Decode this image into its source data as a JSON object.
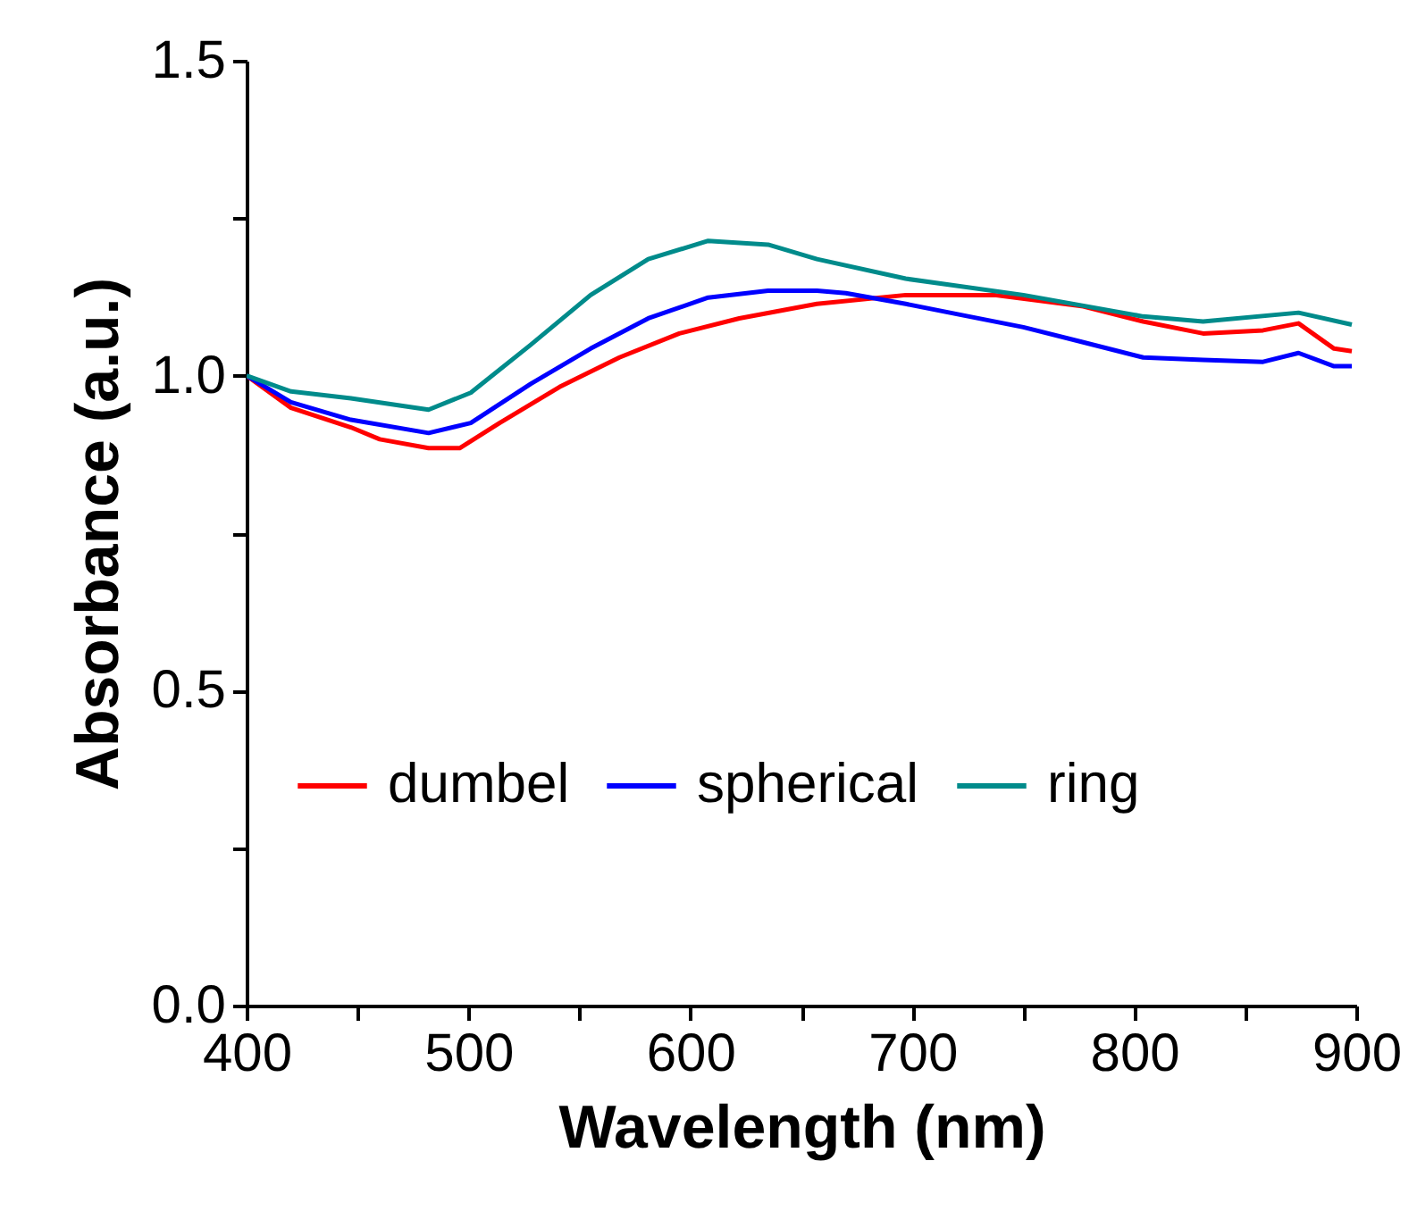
{
  "chart_data": {
    "type": "line",
    "xlabel": "Wavelength (nm)",
    "ylabel": "Absorbance (a.u.)",
    "xlim": [
      400,
      900
    ],
    "ylim": [
      0,
      1.5
    ],
    "xticks": [
      400,
      {
        "value": 450,
        "label": null
      },
      500,
      {
        "value": 550,
        "label": null
      },
      600,
      {
        "value": 650,
        "label": null
      },
      700,
      {
        "value": 750,
        "label": null
      },
      800,
      {
        "value": 850,
        "label": null
      },
      900
    ],
    "yticks": [
      {
        "value": 0,
        "label": "0.0"
      },
      {
        "value": 0.25,
        "label": null
      },
      0.5,
      {
        "value": 0.75,
        "label": null
      },
      {
        "value": 1,
        "label": "1.0"
      },
      {
        "value": 1.25,
        "label": null
      },
      1.5
    ],
    "grid": false,
    "legend": "center",
    "line_style": "solid",
    "marker": "none",
    "series": [
      {
        "name": "dumbel",
        "color": "#ff0000",
        "x": [
          400,
          420,
          447,
          460,
          482,
          496,
          514,
          541,
          568,
          595,
          622,
          657,
          697,
          737,
          777,
          804,
          831,
          858,
          874,
          890,
          898
        ],
        "values": [
          1.0,
          0.949,
          0.918,
          0.899,
          0.885,
          0.885,
          0.925,
          0.982,
          1.029,
          1.067,
          1.091,
          1.114,
          1.128,
          1.128,
          1.11,
          1.086,
          1.067,
          1.072,
          1.083,
          1.043,
          1.039
        ]
      },
      {
        "name": "spherical",
        "color": "#0000ff",
        "x": [
          400,
          420,
          447,
          482,
          501,
          528,
          555,
          581,
          608,
          635,
          657,
          670,
          697,
          724,
          750,
          777,
          804,
          831,
          858,
          874,
          890,
          898
        ],
        "values": [
          1.0,
          0.958,
          0.93,
          0.909,
          0.925,
          0.987,
          1.043,
          1.091,
          1.124,
          1.135,
          1.135,
          1.131,
          1.114,
          1.095,
          1.077,
          1.053,
          1.029,
          1.025,
          1.022,
          1.036,
          1.015,
          1.015
        ]
      },
      {
        "name": "ring",
        "color": "#008b8b",
        "x": [
          400,
          420,
          447,
          482,
          501,
          528,
          555,
          581,
          608,
          635,
          657,
          697,
          750,
          804,
          831,
          874,
          898
        ],
        "values": [
          1.0,
          0.975,
          0.964,
          0.946,
          0.973,
          1.049,
          1.128,
          1.185,
          1.214,
          1.208,
          1.185,
          1.154,
          1.128,
          1.094,
          1.086,
          1.1,
          1.081
        ]
      }
    ]
  }
}
